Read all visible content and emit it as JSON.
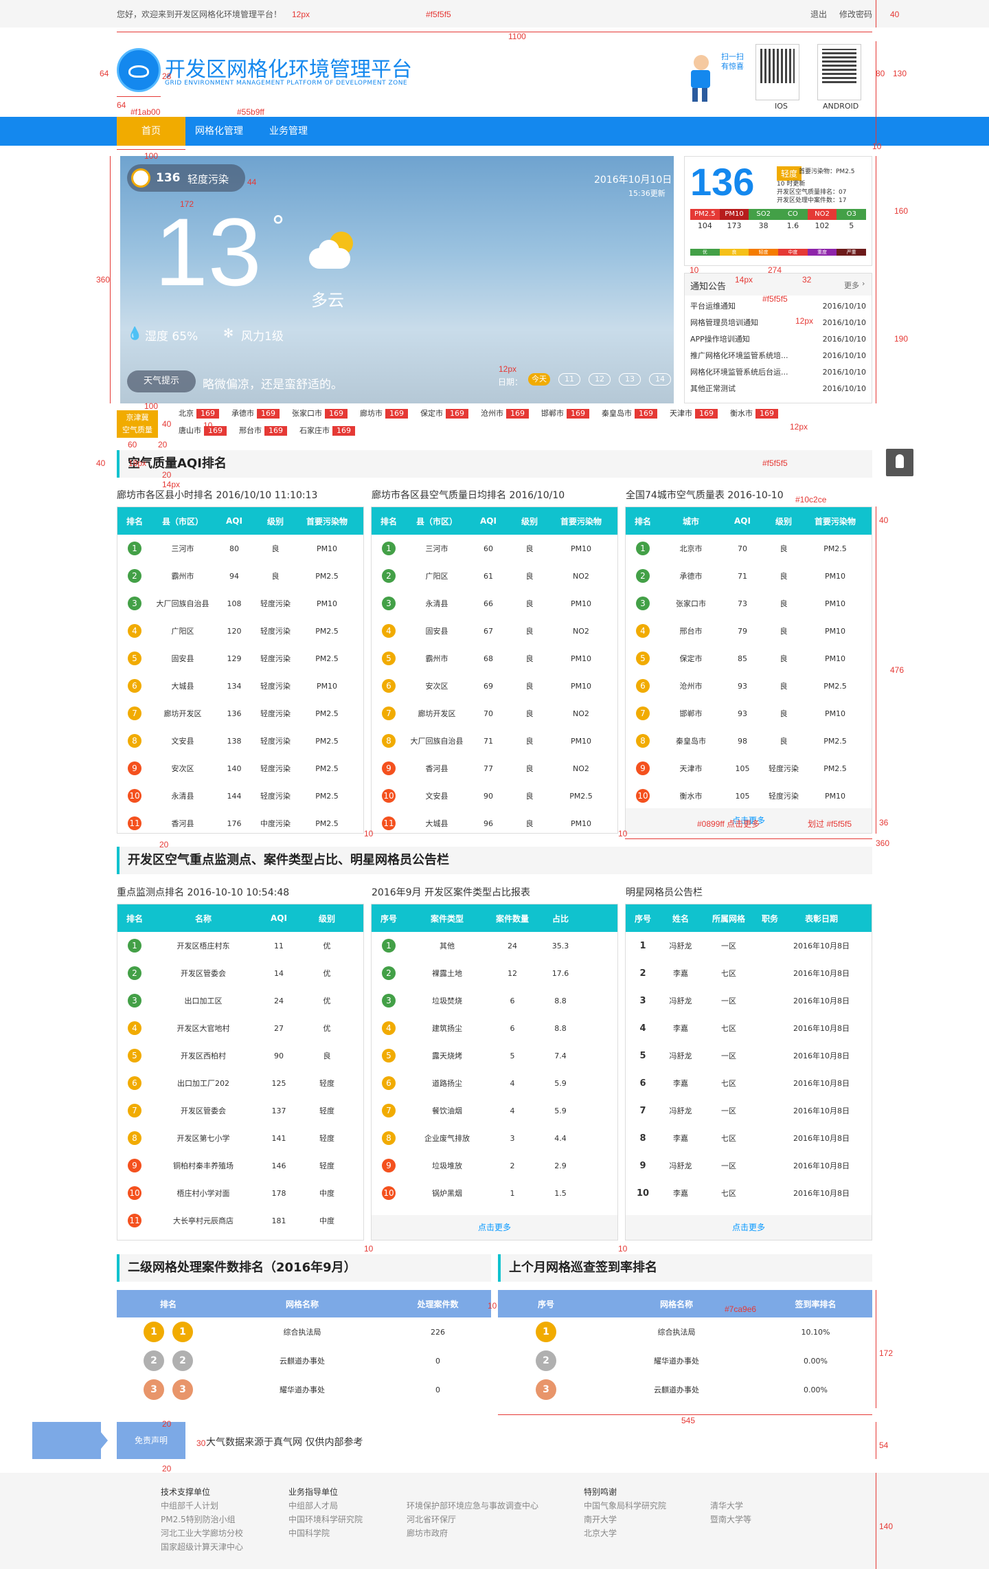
{
  "topbar": {
    "welcome": "您好，欢迎来到开发区网格化环境管理平台！",
    "logout": "退出",
    "change_pwd": "修改密码"
  },
  "header": {
    "title": "开发区网格化环境管理平台",
    "subtitle": "GRID ENVIRONMENT MANAGEMENT PLATFORM OF DEVELOPMENT ZONE",
    "scan_text": "扫一扫\n有惊喜",
    "qr1_label": "IOS",
    "qr2_label": "ANDROID"
  },
  "nav": {
    "items": [
      "首页",
      "网格化管理",
      "业务管理"
    ]
  },
  "weather": {
    "aqi": "136",
    "level": "轻度污染",
    "date": "2016年10月10日",
    "update": "15:36更新",
    "temp": "13",
    "degree": "°",
    "cond": "多云",
    "humidity": "湿度 65%",
    "wind": "风力1级",
    "tip_label": "天气提示",
    "tip": "略微偏凉，还是蛮舒适的。",
    "date_label": "日期：",
    "dates": [
      "今天",
      "11",
      "12",
      "13",
      "14"
    ]
  },
  "aqi_panel": {
    "value": "136",
    "badge": "轻度",
    "primary": "首要污染物：PM2.5",
    "time": "10 时更新",
    "rank1": "开发区空气质量排名：07",
    "rank2": "开发区处理中案件数：17",
    "pollutants": [
      "PM2.5",
      "PM10",
      "SO2",
      "CO",
      "NO2",
      "O3"
    ],
    "values": [
      "104",
      "173",
      "38",
      "1.6",
      "102",
      "5"
    ],
    "scale": [
      "优",
      "良",
      "轻度",
      "中度",
      "重度",
      "严重"
    ]
  },
  "notice": {
    "title": "通知公告",
    "more": "更多",
    "items": [
      {
        "t": "平台运维通知",
        "d": "2016/10/10"
      },
      {
        "t": "网格管理员培训通知",
        "d": "2016/10/10"
      },
      {
        "t": "APP操作培训通知",
        "d": "2016/10/10"
      },
      {
        "t": "推广网格化环境监管系统培...",
        "d": "2016/10/10"
      },
      {
        "t": "网格化环境监管系统后台运...",
        "d": "2016/10/10"
      },
      {
        "t": "其他正常测试",
        "d": "2016/10/10"
      }
    ]
  },
  "cities": {
    "label": "京津冀\n空气质量",
    "row1": [
      [
        "北京",
        "169"
      ],
      [
        "承德市",
        "169"
      ],
      [
        "张家口市",
        "169"
      ],
      [
        "廊坊市",
        "169"
      ],
      [
        "保定市",
        "169"
      ],
      [
        "沧州市",
        "169"
      ],
      [
        "邯郸市",
        "169"
      ],
      [
        "秦皇岛市",
        "169"
      ],
      [
        "天津市",
        "169"
      ],
      [
        "衡水市",
        "169"
      ]
    ],
    "row2": [
      [
        "唐山市",
        "169"
      ],
      [
        "邢台市",
        "169"
      ],
      [
        "石家庄市",
        "169"
      ]
    ]
  },
  "sec1": {
    "title": "空气质量AQI排名",
    "t1": {
      "caption": "廊坊市各区县小时排名  2016/10/10  11:10:13",
      "head": [
        "排名",
        "县（市区）",
        "AQI",
        "级别",
        "首要污染物"
      ],
      "rows": [
        [
          "三河市",
          "80",
          "良",
          "PM10"
        ],
        [
          "霸州市",
          "94",
          "良",
          "PM2.5"
        ],
        [
          "大厂回族自治县",
          "108",
          "轻度污染",
          "PM10"
        ],
        [
          "广阳区",
          "120",
          "轻度污染",
          "PM2.5"
        ],
        [
          "固安县",
          "129",
          "轻度污染",
          "PM2.5"
        ],
        [
          "大城县",
          "134",
          "轻度污染",
          "PM10"
        ],
        [
          "廊坊开发区",
          "136",
          "轻度污染",
          "PM2.5"
        ],
        [
          "文安县",
          "138",
          "轻度污染",
          "PM2.5"
        ],
        [
          "安次区",
          "140",
          "轻度污染",
          "PM2.5"
        ],
        [
          "永清县",
          "144",
          "轻度污染",
          "PM2.5"
        ],
        [
          "香河县",
          "176",
          "中度污染",
          "PM2.5"
        ]
      ]
    },
    "t2": {
      "caption": "廊坊市各区县空气质量日均排名  2016/10/10",
      "head": [
        "排名",
        "县（市区）",
        "AQI",
        "级别",
        "首要污染物"
      ],
      "rows": [
        [
          "三河市",
          "60",
          "良",
          "PM10"
        ],
        [
          "广阳区",
          "61",
          "良",
          "NO2"
        ],
        [
          "永清县",
          "66",
          "良",
          "PM10"
        ],
        [
          "固安县",
          "67",
          "良",
          "NO2"
        ],
        [
          "霸州市",
          "68",
          "良",
          "PM10"
        ],
        [
          "安次区",
          "69",
          "良",
          "PM10"
        ],
        [
          "廊坊开发区",
          "70",
          "良",
          "NO2"
        ],
        [
          "大厂回族自治县",
          "71",
          "良",
          "PM10"
        ],
        [
          "香河县",
          "77",
          "良",
          "NO2"
        ],
        [
          "文安县",
          "90",
          "良",
          "PM2.5"
        ],
        [
          "大城县",
          "96",
          "良",
          "PM10"
        ]
      ]
    },
    "t3": {
      "caption": "全国74城市空气质量表  2016-10-10",
      "head": [
        "排名",
        "城市",
        "AQI",
        "级别",
        "首要污染物"
      ],
      "rows": [
        [
          "北京市",
          "70",
          "良",
          "PM2.5"
        ],
        [
          "承德市",
          "71",
          "良",
          "PM10"
        ],
        [
          "张家口市",
          "73",
          "良",
          "PM10"
        ],
        [
          "邢台市",
          "79",
          "良",
          "PM10"
        ],
        [
          "保定市",
          "85",
          "良",
          "PM10"
        ],
        [
          "沧州市",
          "93",
          "良",
          "PM2.5"
        ],
        [
          "邯郸市",
          "93",
          "良",
          "PM10"
        ],
        [
          "秦皇岛市",
          "98",
          "良",
          "PM2.5"
        ],
        [
          "天津市",
          "105",
          "轻度污染",
          "PM2.5"
        ],
        [
          "衡水市",
          "105",
          "轻度污染",
          "PM10"
        ]
      ],
      "more": "点击更多"
    }
  },
  "sec2": {
    "title": "开发区空气重点监测点、案件类型占比、明星网格员公告栏",
    "t1": {
      "caption": "重点监测点排名  2016-10-10  10:54:48",
      "head": [
        "排名",
        "名称",
        "AQI",
        "级别"
      ],
      "rows": [
        [
          "开发区梧庄村东",
          "11",
          "优"
        ],
        [
          "开发区管委会",
          "14",
          "优"
        ],
        [
          "出口加工区",
          "24",
          "优"
        ],
        [
          "开发区大官地村",
          "27",
          "优"
        ],
        [
          "开发区西柏村",
          "90",
          "良"
        ],
        [
          "出口加工厂202",
          "125",
          "轻度"
        ],
        [
          "开发区管委会",
          "137",
          "轻度"
        ],
        [
          "开发区第七小学",
          "141",
          "轻度"
        ],
        [
          "铜柏村秦丰养殖场",
          "146",
          "轻度"
        ],
        [
          "梧庄村小学对面",
          "178",
          "中度"
        ],
        [
          "大长亭村元辰商店",
          "181",
          "中度"
        ]
      ]
    },
    "t2": {
      "caption": "2016年9月 开发区案件类型占比报表",
      "head": [
        "序号",
        "案件类型",
        "案件数量",
        "占比"
      ],
      "rows": [
        [
          "其他",
          "24",
          "35.3"
        ],
        [
          "裸露土地",
          "12",
          "17.6"
        ],
        [
          "垃圾焚烧",
          "6",
          "8.8"
        ],
        [
          "建筑扬尘",
          "6",
          "8.8"
        ],
        [
          "露天烧烤",
          "5",
          "7.4"
        ],
        [
          "道路扬尘",
          "4",
          "5.9"
        ],
        [
          "餐饮油烟",
          "4",
          "5.9"
        ],
        [
          "企业废气排放",
          "3",
          "4.4"
        ],
        [
          "垃圾堆放",
          "2",
          "2.9"
        ],
        [
          "锅炉黑烟",
          "1",
          "1.5"
        ]
      ],
      "more": "点击更多"
    },
    "t3": {
      "caption": "明星网格员公告栏",
      "head": [
        "序号",
        "姓名",
        "所属网格",
        "职务",
        "表彰日期"
      ],
      "rows": [
        [
          "冯舒龙",
          "一区",
          "",
          "2016年10月8日"
        ],
        [
          "李嘉",
          "七区",
          "",
          "2016年10月8日"
        ],
        [
          "冯舒龙",
          "一区",
          "",
          "2016年10月8日"
        ],
        [
          "李嘉",
          "七区",
          "",
          "2016年10月8日"
        ],
        [
          "冯舒龙",
          "一区",
          "",
          "2016年10月8日"
        ],
        [
          "李嘉",
          "七区",
          "",
          "2016年10月8日"
        ],
        [
          "冯舒龙",
          "一区",
          "",
          "2016年10月8日"
        ],
        [
          "李嘉",
          "七区",
          "",
          "2016年10月8日"
        ],
        [
          "冯舒龙",
          "一区",
          "",
          "2016年10月8日"
        ],
        [
          "李嘉",
          "七区",
          "",
          "2016年10月8日"
        ]
      ],
      "more": "点击更多"
    }
  },
  "sec3": {
    "left_title": "二级网格处理案件数排名（2016年9月）",
    "right_title": "上个月网格巡查签到率排名",
    "left_head": [
      "排名",
      "网格名称",
      "处理案件数"
    ],
    "left_rows": [
      [
        "综合执法局",
        "226"
      ],
      [
        "云麒道办事处",
        "0"
      ],
      [
        "耀华道办事处",
        "0"
      ]
    ],
    "right_head": [
      "序号",
      "网格名称",
      "签到率排名"
    ],
    "right_rows": [
      [
        "综合执法局",
        "10.10%"
      ],
      [
        "耀华道办事处",
        "0.00%"
      ],
      [
        "云麒道办事处",
        "0.00%"
      ]
    ]
  },
  "disclaimer": {
    "label": "免责声明",
    "text": "大气数据来源于真气网 仅供内部参考"
  },
  "footer": {
    "c1_title": "技术支撑单位",
    "c1": [
      "中组部千人计划",
      "PM2.5特别防治小组",
      "河北工业大学廊坊分校",
      "国家超级计算天津中心"
    ],
    "c2_title": "业务指导单位",
    "c2": [
      "中组部人才局",
      "中国环境科学研究院",
      "中国科学院"
    ],
    "c3": [
      "环境保护部环境应急与事故调查中心",
      "河北省环保厅",
      "廊坊市政府"
    ],
    "c4_title": "特别鸣谢",
    "c4": [
      "中国气象局科学研究院",
      "南开大学",
      "北京大学"
    ],
    "c5": [
      "清华大学",
      "暨南大学等"
    ]
  },
  "annotations": [
    "12px",
    "#f5f5f5",
    "1100",
    "40",
    "64",
    "28",
    "64",
    "#f1ab00",
    "#55b9ff",
    "80",
    "130",
    "10",
    "100",
    "44",
    "172",
    "160",
    "360",
    "274",
    "10",
    "32",
    "14px",
    "#f5f5f5",
    "12px",
    "190",
    "12px",
    "12px",
    "100",
    "40",
    "10",
    "60",
    "20",
    "18px",
    "40",
    "20",
    "14px",
    "#f5f5f5",
    "#10c2ce",
    "40",
    "476",
    "20",
    "10",
    "10",
    "#0899ff 点击更多",
    "划过 #f5f5f5",
    "36",
    "360",
    "10",
    "10",
    "10",
    "#7ca9e6",
    "172",
    "545",
    "20",
    "30",
    "54",
    "20",
    "140"
  ],
  "colors": {
    "brand": "#1488ee",
    "accent": "#f1ab00",
    "teal": "#10c2ce",
    "grey": "#f5f5f5",
    "link": "#0899ff",
    "blue2": "#7ca9e6"
  }
}
